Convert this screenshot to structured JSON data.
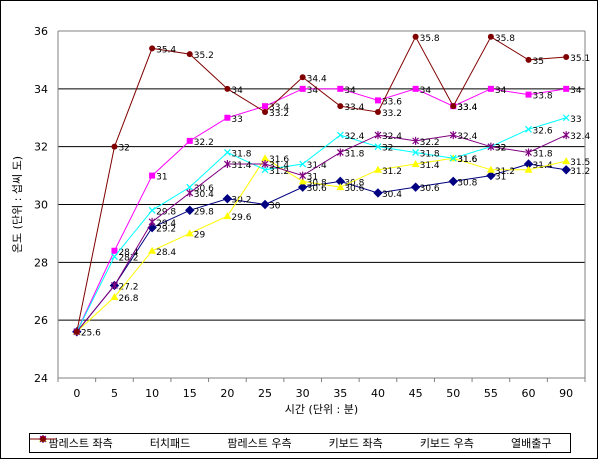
{
  "chart_data": {
    "type": "line",
    "title": "",
    "xlabel": "시간 (단위 : 분)",
    "ylabel": "온도 (단위 : 섭씨 도)",
    "x": [
      0,
      5,
      10,
      15,
      20,
      25,
      30,
      35,
      40,
      45,
      50,
      55,
      60,
      90
    ],
    "x_tick_labels": [
      "0",
      "5",
      "10",
      "15",
      "20",
      "25",
      "30",
      "35",
      "40",
      "45",
      "50",
      "55",
      "60",
      "90"
    ],
    "ylim": [
      24,
      36
    ],
    "y_ticks": [
      "24",
      "26",
      "28",
      "30",
      "32",
      "34",
      "36"
    ],
    "grid": true,
    "legend_position": "bottom",
    "series": [
      {
        "name": "팜레스트 좌측",
        "color": "#000080",
        "marker": "diamond",
        "values": [
          25.6,
          27.2,
          29.2,
          29.8,
          30.2,
          30,
          30.6,
          30.8,
          30.4,
          30.6,
          30.8,
          31,
          31.4,
          31.2
        ],
        "labels": [
          "",
          "27.2",
          "29.2",
          "29.8",
          "30.2",
          "30",
          "30.6",
          "30.8",
          "30.4",
          "30.6",
          "30.8",
          "31",
          "31.4",
          "31.2"
        ]
      },
      {
        "name": "터치패드",
        "color": "#ff00ff",
        "marker": "square",
        "values": [
          25.6,
          28.4,
          31,
          32.2,
          33,
          33.4,
          34,
          34,
          33.6,
          34,
          33.4,
          34,
          33.8,
          34
        ],
        "labels": [
          "",
          "28.4",
          "31",
          "32.2",
          "33",
          "33.4",
          "34",
          "34",
          "33.6",
          "34",
          "33.4",
          "34",
          "33.8",
          "34"
        ]
      },
      {
        "name": "팜레스트 우측",
        "color": "#ffff00",
        "marker": "triangle",
        "values": [
          25.6,
          26.8,
          28.4,
          29,
          29.6,
          31.6,
          30.8,
          30.6,
          31.2,
          31.4,
          31.6,
          31.2,
          31.2,
          31.5
        ],
        "labels": [
          "",
          "26.8",
          "28.4",
          "29",
          "29.6",
          "31.6",
          "30.8",
          "30.6",
          "31.2",
          "31.4",
          "31.6",
          "31.2",
          "",
          "31.5"
        ]
      },
      {
        "name": "키보드 좌측",
        "color": "#00ffff",
        "marker": "x",
        "values": [
          25.6,
          28.2,
          29.8,
          30.6,
          31.8,
          31.2,
          31.4,
          32.4,
          32,
          31.8,
          31.6,
          32,
          32.6,
          33
        ],
        "labels": [
          "",
          "28.2",
          "29.8",
          "30.6",
          "31.8",
          "31.2",
          "31.4",
          "32.4",
          "32",
          "31.8",
          "31.6",
          "32",
          "32.6",
          "33"
        ]
      },
      {
        "name": "키보드 우측",
        "color": "#800080",
        "marker": "star",
        "values": [
          25.6,
          27.2,
          29.4,
          30.4,
          31.4,
          31.4,
          31,
          31.8,
          32.4,
          32.2,
          32.4,
          32,
          31.8,
          32.4
        ],
        "labels": [
          "",
          "",
          "29.4",
          "30.4",
          "31.4",
          "31.4",
          "31",
          "31.8",
          "32.4",
          "32.2",
          "32.4",
          "32",
          "31.8",
          "32.4"
        ]
      },
      {
        "name": "열배출구",
        "color": "#800000",
        "marker": "circle",
        "values": [
          25.6,
          32,
          35.4,
          35.2,
          34,
          33.2,
          34.4,
          33.4,
          33.2,
          35.8,
          33.4,
          35.8,
          35,
          35.1
        ],
        "labels": [
          "25.6",
          "32",
          "35.4",
          "35.2",
          "34",
          "33.2",
          "34.4",
          "33.4",
          "33.2",
          "35.8",
          "33.4",
          "35.8",
          "35",
          "35.1"
        ]
      }
    ]
  }
}
